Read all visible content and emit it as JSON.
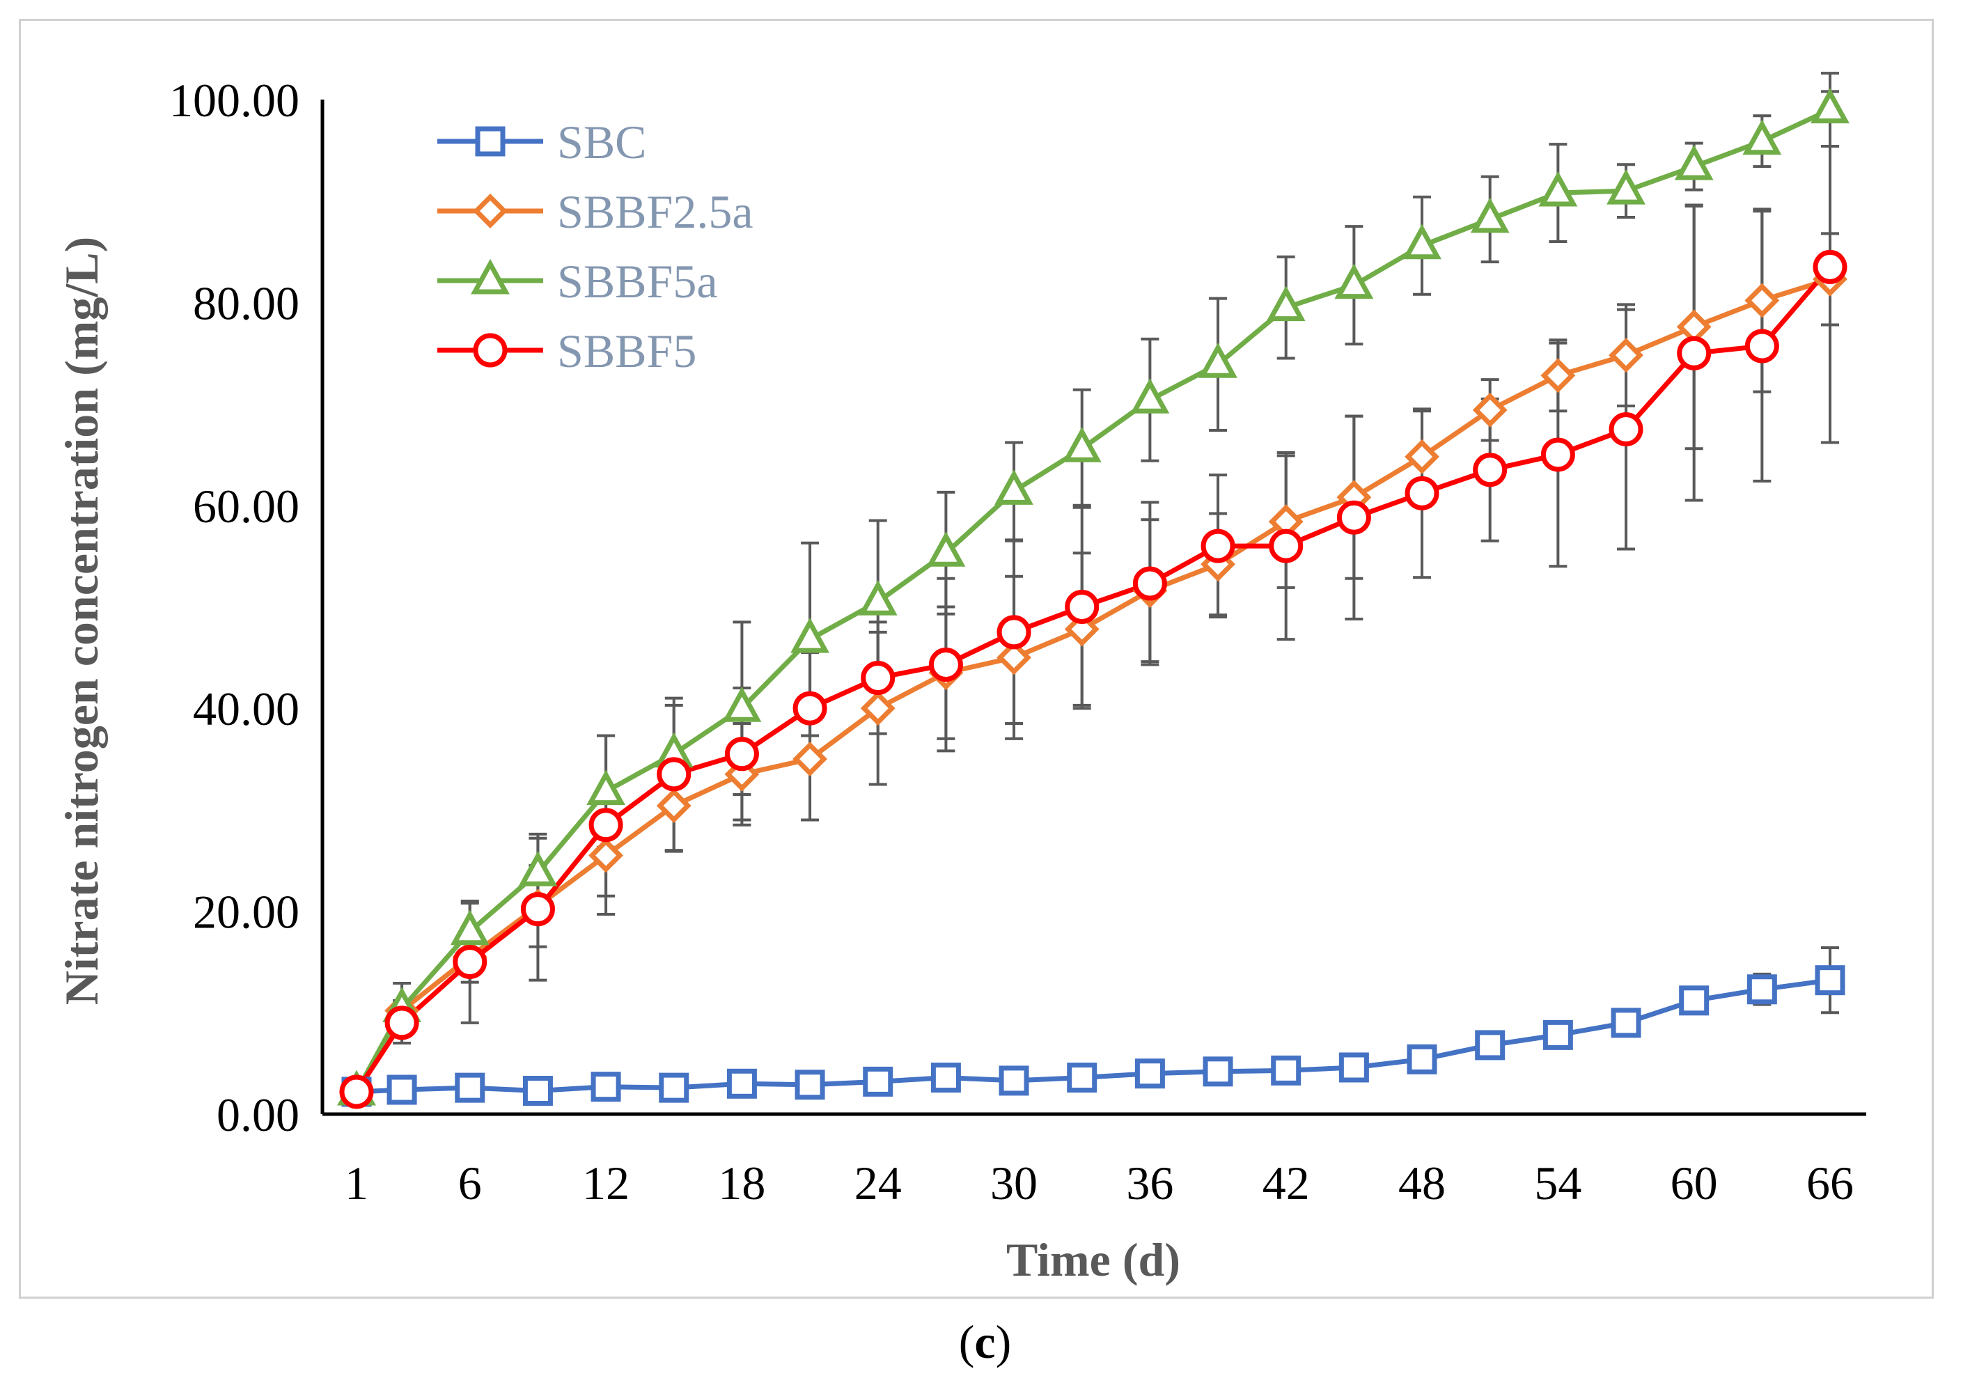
{
  "chart_data": {
    "type": "line",
    "ylabel": "Nitrate nitrogen concentration (mg/L)",
    "xlabel": "Time (d)",
    "ylim": [
      0,
      100
    ],
    "yticks": [
      "0.00",
      "20.00",
      "40.00",
      "60.00",
      "80.00",
      "100.00"
    ],
    "xticks": [
      "1",
      "6",
      "12",
      "18",
      "24",
      "30",
      "36",
      "42",
      "48",
      "54",
      "60",
      "66"
    ],
    "x": [
      1,
      3,
      6,
      9,
      12,
      15,
      18,
      21,
      24,
      27,
      30,
      33,
      36,
      39,
      42,
      45,
      48,
      51,
      54,
      57,
      60,
      63,
      66
    ],
    "legend_position": "top-left",
    "grid": false,
    "series": [
      {
        "name": "SBC",
        "color": "#4472c4",
        "marker": "square",
        "values": [
          2.2,
          2.4,
          2.6,
          2.3,
          2.7,
          2.6,
          3.0,
          2.9,
          3.2,
          3.6,
          3.3,
          3.6,
          4.0,
          4.2,
          4.3,
          4.6,
          5.4,
          6.8,
          7.8,
          9.0,
          11.2,
          12.3,
          13.2
        ],
        "errors": [
          0.3,
          0.3,
          0.3,
          0.3,
          0.3,
          0.3,
          0.3,
          0.3,
          0.3,
          0.3,
          0.3,
          0.3,
          0.3,
          0.3,
          0.3,
          0.3,
          0.4,
          0.5,
          0.5,
          0.6,
          0.8,
          1.5,
          3.2
        ]
      },
      {
        "name": "SBBF2.5a",
        "color": "#ed7d31",
        "marker": "diamond",
        "values": [
          2.2,
          10.2,
          15.5,
          20.5,
          25.5,
          30.4,
          33.5,
          35.0,
          40.0,
          43.5,
          45.0,
          47.8,
          51.6,
          54.2,
          58.4,
          60.8,
          64.8,
          69.4,
          72.8,
          74.8,
          77.6,
          80.2,
          82.3
        ],
        "errors": [
          0.3,
          1.0,
          2.5,
          4.0,
          4.0,
          4.5,
          5.0,
          6.0,
          7.5,
          6.5,
          8.0,
          7.5,
          7.0,
          5.0,
          6.5,
          8.0,
          4.5,
          3.0,
          3.5,
          5.0,
          12.0,
          9.0,
          4.5
        ]
      },
      {
        "name": "SBBF5a",
        "color": "#70ad47",
        "marker": "triangle",
        "values": [
          2.2,
          10.4,
          18.0,
          23.8,
          31.8,
          35.5,
          40.0,
          46.8,
          50.5,
          55.3,
          61.4,
          65.6,
          70.4,
          73.9,
          79.5,
          81.7,
          85.6,
          88.2,
          90.8,
          91.0,
          93.4,
          95.9,
          99.0
        ],
        "errors": [
          0.3,
          2.5,
          2.8,
          3.8,
          5.5,
          4.8,
          8.5,
          9.5,
          8.0,
          6.0,
          4.8,
          5.8,
          6.0,
          6.5,
          5.0,
          5.8,
          4.8,
          4.2,
          4.8,
          2.6,
          2.3,
          2.5,
          3.6
        ]
      },
      {
        "name": "SBBF5",
        "color": "#ff0000",
        "marker": "circle",
        "values": [
          2.2,
          9.0,
          15.0,
          20.2,
          28.5,
          33.5,
          35.5,
          40.0,
          43.0,
          44.3,
          47.5,
          50.0,
          52.3,
          56.0,
          56.0,
          58.8,
          61.2,
          63.5,
          65.0,
          67.5,
          75.0,
          75.7,
          83.5
        ],
        "errors": [
          0.3,
          2.0,
          6.0,
          7.0,
          8.8,
          7.5,
          6.5,
          5.5,
          5.5,
          8.5,
          9.0,
          10.0,
          8.0,
          7.0,
          9.2,
          10.0,
          8.3,
          7.0,
          11.0,
          11.8,
          14.5,
          13.3,
          17.3
        ]
      }
    ]
  },
  "panel_label": "c"
}
